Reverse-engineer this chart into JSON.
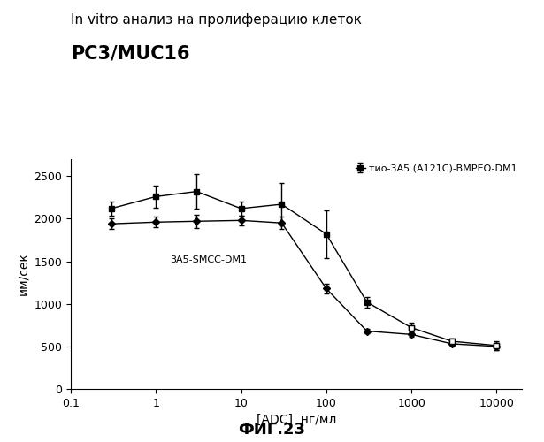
{
  "title_line1": "In vitro анализ на пролиферацию клеток",
  "title_line2": "PC3/MUC16",
  "xlabel": "[ADC]  нг/мл",
  "ylabel": "им/сек",
  "caption": "ФИГ.23",
  "xmin": 0.2,
  "xmax": 20000,
  "ymin": 0,
  "ymax": 2700,
  "series1_label": "тио-3A5 (A121C)-BMPEO-DM1",
  "series2_label": "3A5-SMCC-DM1",
  "series1_x": [
    0.3,
    1,
    3,
    10,
    30,
    100,
    300,
    1000,
    3000,
    10000
  ],
  "series1_y": [
    2120,
    2260,
    2320,
    2120,
    2170,
    1820,
    1020,
    720,
    560,
    510
  ],
  "series1_yerr": [
    80,
    130,
    200,
    80,
    250,
    280,
    60,
    60,
    30,
    50
  ],
  "series2_x": [
    0.3,
    1,
    3,
    10,
    30,
    100,
    300,
    1000,
    3000,
    10000
  ],
  "series2_y": [
    1940,
    1960,
    1970,
    1980,
    1950,
    1180,
    680,
    640,
    530,
    500
  ],
  "series2_yerr": [
    60,
    60,
    80,
    60,
    70,
    60,
    30,
    30,
    20,
    40
  ],
  "background_color": "#ffffff",
  "line_color": "#000000",
  "yticks": [
    0,
    500,
    1000,
    1500,
    2000,
    2500
  ],
  "xtick_vals": [
    0.1,
    1,
    10,
    100,
    1000,
    10000
  ],
  "xtick_labels": [
    "0.1",
    "1",
    "10",
    "100",
    "1000",
    "10000"
  ]
}
